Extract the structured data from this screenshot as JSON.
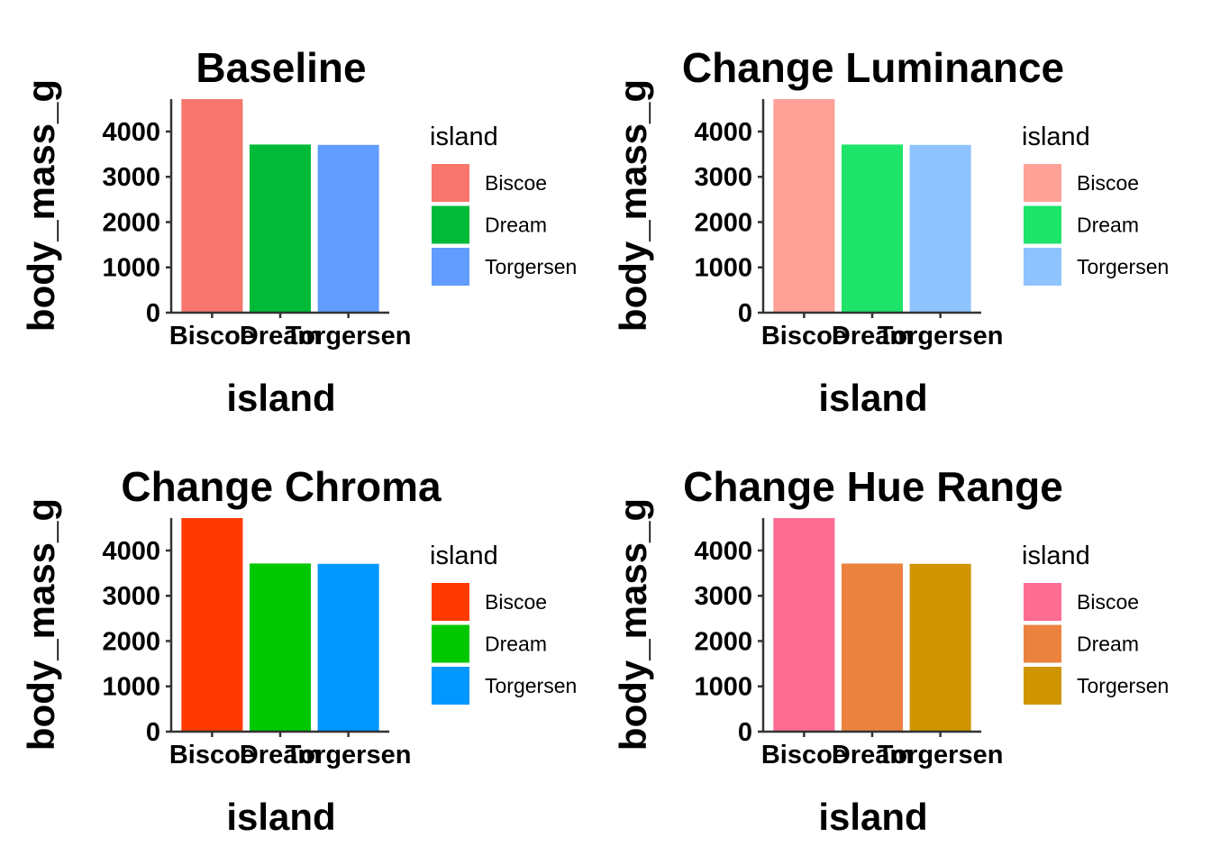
{
  "chart_data": [
    {
      "type": "bar",
      "title": "Baseline",
      "xlabel": "island",
      "ylabel": "body_mass_g",
      "categories": [
        "Biscoe",
        "Dream",
        "Torgersen"
      ],
      "values": [
        4716,
        3713,
        3706
      ],
      "colors": [
        "#F8766D",
        "#00BA38",
        "#619CFF"
      ],
      "ylim": [
        0,
        4716
      ],
      "yticks": [
        0,
        1000,
        2000,
        3000,
        4000
      ],
      "legend": {
        "title": "island",
        "position": "right"
      },
      "grid": false
    },
    {
      "type": "bar",
      "title": "Change Luminance",
      "xlabel": "island",
      "ylabel": "body_mass_g",
      "categories": [
        "Biscoe",
        "Dream",
        "Torgersen"
      ],
      "values": [
        4716,
        3713,
        3706
      ],
      "colors": [
        "#FFA197",
        "#1EE46A",
        "#8FC3FF"
      ],
      "ylim": [
        0,
        4716
      ],
      "yticks": [
        0,
        1000,
        2000,
        3000,
        4000
      ],
      "legend": {
        "title": "island",
        "position": "right"
      },
      "grid": false
    },
    {
      "type": "bar",
      "title": "Change Chroma",
      "xlabel": "island",
      "ylabel": "body_mass_g",
      "categories": [
        "Biscoe",
        "Dream",
        "Torgersen"
      ],
      "values": [
        4716,
        3713,
        3706
      ],
      "colors": [
        "#FF3A00",
        "#00C800",
        "#0097FF"
      ],
      "ylim": [
        0,
        4716
      ],
      "yticks": [
        0,
        1000,
        2000,
        3000,
        4000
      ],
      "legend": {
        "title": "island",
        "position": "right"
      },
      "grid": false
    },
    {
      "type": "bar",
      "title": "Change Hue Range",
      "xlabel": "island",
      "ylabel": "body_mass_g",
      "categories": [
        "Biscoe",
        "Dream",
        "Torgersen"
      ],
      "values": [
        4716,
        3713,
        3706
      ],
      "colors": [
        "#FF6C91",
        "#EB833F",
        "#CE9500"
      ],
      "ylim": [
        0,
        4716
      ],
      "yticks": [
        0,
        1000,
        2000,
        3000,
        4000
      ],
      "legend": {
        "title": "island",
        "position": "right"
      },
      "grid": false
    }
  ]
}
